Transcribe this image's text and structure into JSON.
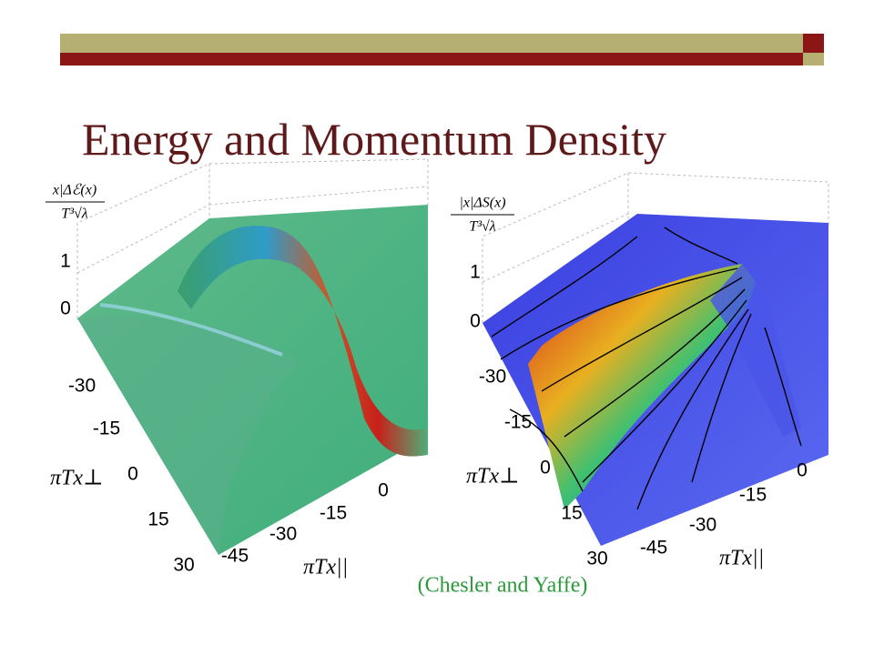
{
  "header": {
    "title": "Energy and Momentum Density"
  },
  "plots": [
    {
      "z_label": {
        "numerator": "x|Δℰ(x)",
        "denominator": "T³√λ"
      },
      "z_ticks": [
        "1",
        "0"
      ],
      "perp_label": "πTx⊥",
      "perp_ticks": [
        "-30",
        "-15",
        "0",
        "15",
        "30"
      ],
      "par_label": "πTx||",
      "par_ticks": [
        "-45",
        "-30",
        "-15",
        "0"
      ]
    },
    {
      "z_label": {
        "numerator": "|x|ΔS(x)",
        "denominator": "T³√λ"
      },
      "z_ticks": [
        "1",
        "0"
      ],
      "perp_label": "πTx⊥",
      "perp_ticks": [
        "-30",
        "-15",
        "0",
        "15",
        "30"
      ],
      "par_label": "πTx||",
      "par_ticks": [
        "-45",
        "-30",
        "-15",
        "0"
      ]
    }
  ],
  "citation": "(Chesler and Yaffe)"
}
